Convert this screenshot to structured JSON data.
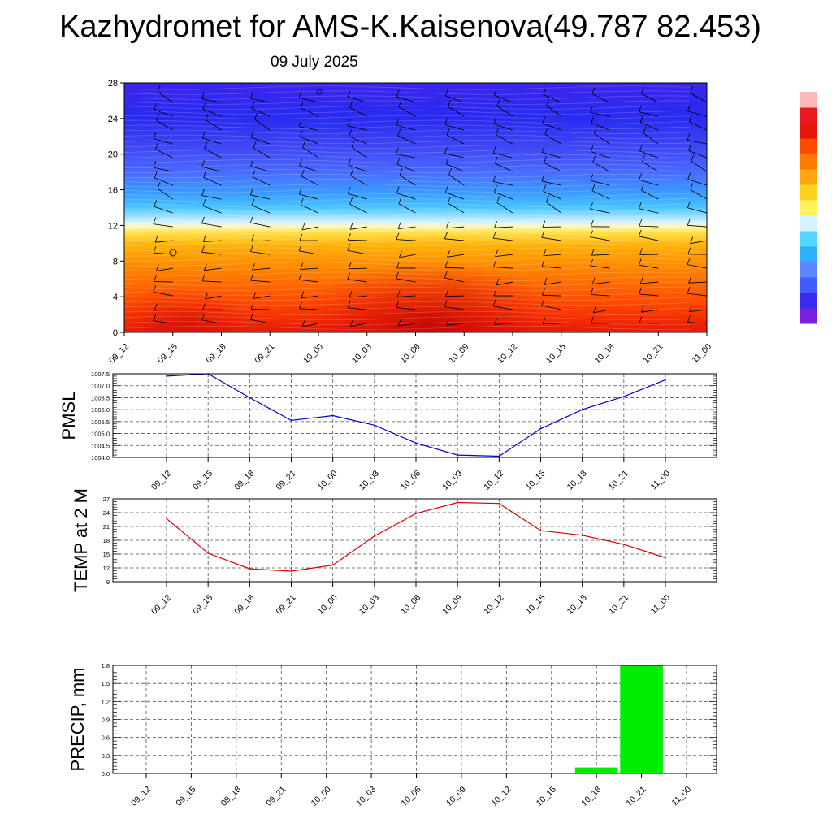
{
  "title": "Kazhydromet for AMS-K.Kaisenova(49.787 82.453)",
  "subtitle": "09 July 2025",
  "time_labels": [
    "09_12",
    "09_15",
    "09_18",
    "09_21",
    "10_00",
    "10_03",
    "10_06",
    "10_09",
    "10_12",
    "10_15",
    "10_18",
    "10_21",
    "11_00"
  ],
  "colors": {
    "pmsl_line": "#0000dd",
    "temp_line": "#dd0000",
    "precip_bar": "#00ee00",
    "colorbar": [
      "#7a1fe0",
      "#3a2bf0",
      "#3f5cff",
      "#5a86ff",
      "#2fb0ff",
      "#53d6ff",
      "#d6f2ff",
      "#fff25a",
      "#ffd21e",
      "#ffa50f",
      "#ff7a00",
      "#ff4b00",
      "#e8160a",
      "#e8181e",
      "#ffb8b8"
    ]
  },
  "chart_data": [
    {
      "type": "heatmap",
      "ylim": [
        0,
        28
      ],
      "yticks": [
        0,
        4,
        8,
        12,
        16,
        20,
        24,
        28
      ],
      "x": [
        "09_12",
        "09_15",
        "09_18",
        "09_21",
        "10_00",
        "10_03",
        "10_06",
        "10_09",
        "10_12",
        "10_15",
        "10_18",
        "10_21",
        "11_00"
      ],
      "grid": false
    },
    {
      "type": "line",
      "ylabel": "PMSL",
      "x": [
        "09_12",
        "09_15",
        "09_18",
        "09_21",
        "10_00",
        "10_03",
        "10_06",
        "10_09",
        "10_12",
        "10_15",
        "10_18",
        "10_21",
        "11_00"
      ],
      "values": [
        1007.4,
        1007.5,
        1006.5,
        1005.55,
        1005.75,
        1005.35,
        1004.6,
        1004.1,
        1004.05,
        1005.2,
        1006.0,
        1006.55,
        1007.25
      ],
      "ylim": [
        1004.0,
        1007.5
      ],
      "yticks": [
        "1004.0",
        "1004.5",
        "1005.0",
        "1005.5",
        "1006.0",
        "1006.5",
        "1007.0",
        "1007.5"
      ],
      "grid": true
    },
    {
      "type": "line",
      "ylabel": "TEMP at 2 M",
      "x": [
        "09_12",
        "09_15",
        "09_18",
        "09_21",
        "10_00",
        "10_03",
        "10_06",
        "10_09",
        "10_12",
        "10_15",
        "10_18",
        "10_21",
        "11_00"
      ],
      "values": [
        22.7,
        15.2,
        11.8,
        11.3,
        12.6,
        18.9,
        23.8,
        26.2,
        26.0,
        20.1,
        19.1,
        17.1,
        14.2
      ],
      "ylim": [
        9,
        27
      ],
      "yticks": [
        "9",
        "12",
        "15",
        "18",
        "21",
        "24",
        "27"
      ],
      "grid": true
    },
    {
      "type": "bar",
      "ylabel": "PRECIP, mm",
      "categories": [
        "09_12",
        "09_15",
        "09_18",
        "09_21",
        "10_00",
        "10_03",
        "10_06",
        "10_09",
        "10_12",
        "10_15",
        "10_18",
        "10_21",
        "11_00"
      ],
      "values": [
        0,
        0,
        0,
        0,
        0,
        0,
        0,
        0,
        0,
        0,
        0.1,
        1.8,
        0
      ],
      "ylim": [
        0,
        1.8
      ],
      "yticks": [
        "0.0",
        "0.3",
        "0.6",
        "0.9",
        "1.2",
        "1.5",
        "1.8"
      ],
      "grid": true
    }
  ]
}
